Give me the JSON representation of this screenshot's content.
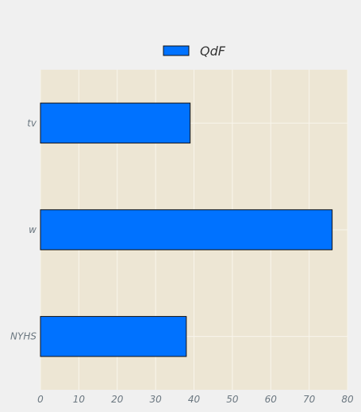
{
  "chart_data": {
    "type": "bar",
    "orientation": "horizontal",
    "categories": [
      "tv",
      "w",
      "NYHS"
    ],
    "series": [
      {
        "name": "QdF",
        "values": [
          39,
          76,
          38
        ]
      }
    ],
    "xlim": [
      0,
      80
    ],
    "xticks": [
      0,
      10,
      20,
      30,
      40,
      50,
      60,
      70,
      80
    ],
    "grid": true,
    "legend_position": "top-center",
    "colors": {
      "bar": "#0072ff",
      "bar_edge": "#111111",
      "plot_background": "#ede6d4",
      "figure_background": "#f0f0f0",
      "grid": "#f8f5ec",
      "tick_text": "#6b7780"
    }
  }
}
